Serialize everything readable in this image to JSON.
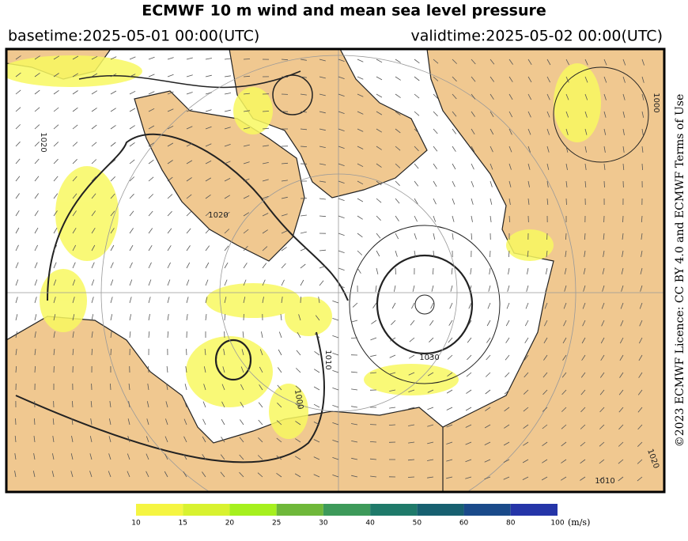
{
  "header": {
    "title": "ECMWF 10 m wind and mean sea level pressure",
    "basetime": "basetime:2025-05-01 00:00(UTC)",
    "validtime": "validtime:2025-05-02 00:00(UTC)"
  },
  "credit": "©2023 ECMWF  Licence: CC BY 4.0 and ECMWF  Terms of Use",
  "map": {
    "contour_labels": [
      1020,
      1010,
      1030,
      1000,
      1010,
      1020,
      1020,
      1000
    ]
  },
  "colorbar": {
    "ticks": [
      10,
      15,
      20,
      25,
      30,
      40,
      50,
      60,
      80,
      100
    ],
    "colors": [
      "#f5f542",
      "#d8f230",
      "#a6f01e",
      "#6fb83a",
      "#3d9a5a",
      "#1f7a6a",
      "#176070",
      "#1a4a8a",
      "#2535a8"
    ],
    "unit": "(m/s)"
  }
}
